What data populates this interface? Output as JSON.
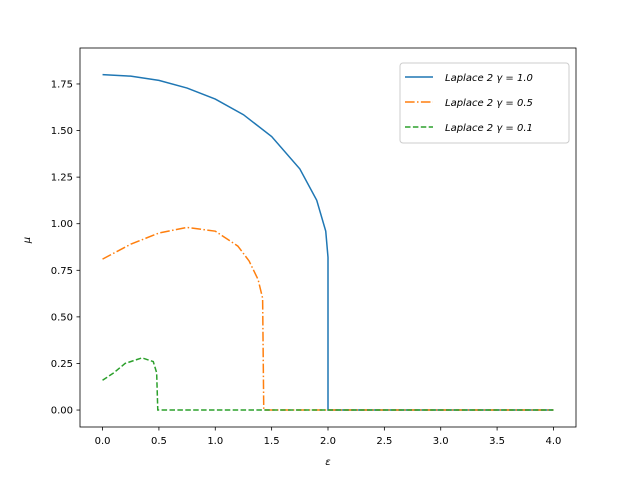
{
  "chart_data": {
    "type": "line",
    "xlabel": "ε",
    "ylabel": "μ",
    "xlim": [
      -0.2,
      4.2
    ],
    "ylim": [
      -0.091,
      1.943
    ],
    "xticks": [
      {
        "value": 0,
        "label": "0.0"
      },
      {
        "value": 0.5,
        "label": "0.5"
      },
      {
        "value": 1,
        "label": "1.0"
      },
      {
        "value": 1.5,
        "label": "1.5"
      },
      {
        "value": 2,
        "label": "2.0"
      },
      {
        "value": 2.5,
        "label": "2.5"
      },
      {
        "value": 3,
        "label": "3.0"
      },
      {
        "value": 3.5,
        "label": "3.5"
      },
      {
        "value": 4,
        "label": "4.0"
      }
    ],
    "yticks": [
      {
        "value": 0,
        "label": "0.00"
      },
      {
        "value": 0.25,
        "label": "0.25"
      },
      {
        "value": 0.5,
        "label": "0.50"
      },
      {
        "value": 0.75,
        "label": "0.75"
      },
      {
        "value": 1,
        "label": "1.00"
      },
      {
        "value": 1.25,
        "label": "1.25"
      },
      {
        "value": 1.5,
        "label": "1.50"
      },
      {
        "value": 1.75,
        "label": "1.75"
      }
    ],
    "legend": "upper right",
    "series": [
      {
        "name": "Laplace 2 γ = 1.0",
        "color": "#1f77b4",
        "style": "solid",
        "x": [
          0,
          0.25,
          0.5,
          0.75,
          1,
          1.25,
          1.5,
          1.75,
          1.9,
          1.98,
          2,
          2,
          2.5,
          3,
          3.5,
          4
        ],
        "values": [
          1.8,
          1.792,
          1.769,
          1.728,
          1.669,
          1.585,
          1.468,
          1.294,
          1.126,
          0.96,
          0.82,
          0,
          0,
          0,
          0,
          0
        ]
      },
      {
        "name": "Laplace 2 γ = 0.5",
        "color": "#ff7f0e",
        "style": "dashdot",
        "x": [
          0,
          0.25,
          0.5,
          0.75,
          1,
          1.2,
          1.3,
          1.38,
          1.42,
          1.43,
          2,
          3,
          4
        ],
        "values": [
          0.81,
          0.89,
          0.95,
          0.98,
          0.96,
          0.88,
          0.8,
          0.7,
          0.6,
          0,
          0,
          0,
          0
        ]
      },
      {
        "name": "Laplace 2 γ = 0.1",
        "color": "#2ca02c",
        "style": "dashed",
        "x": [
          0,
          0.1,
          0.2,
          0.35,
          0.45,
          0.48,
          0.49,
          1,
          2,
          3,
          4
        ],
        "values": [
          0.16,
          0.2,
          0.25,
          0.28,
          0.26,
          0.2,
          0,
          0,
          0,
          0,
          0
        ]
      }
    ]
  }
}
